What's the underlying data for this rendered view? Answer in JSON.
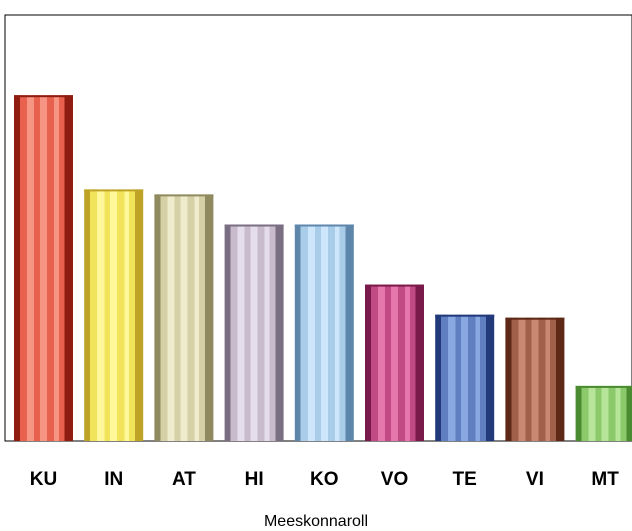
{
  "chart_data": {
    "type": "bar",
    "categories": [
      "KU",
      "IN",
      "AT",
      "HI",
      "KO",
      "VO",
      "TE",
      "VI",
      "MT"
    ],
    "values": [
      345,
      251,
      246,
      216,
      216,
      156,
      126,
      123,
      55
    ],
    "xlabel": "Meeskonnaroll",
    "ylabel": "",
    "ylim": [
      0,
      425
    ],
    "grid": false,
    "legend": "none",
    "colors": {
      "KU": {
        "base": "#e8604e",
        "light": "#f79585",
        "dark": "#8f1c10"
      },
      "IN": {
        "base": "#f2e45a",
        "light": "#fff89a",
        "dark": "#bfa326"
      },
      "AT": {
        "base": "#d6d0a6",
        "light": "#efeccd",
        "dark": "#8f8a60"
      },
      "HI": {
        "base": "#c8bccc",
        "light": "#e5dcec",
        "dark": "#7a6e82"
      },
      "KO": {
        "base": "#a9cce9",
        "light": "#cde6fb",
        "dark": "#5e86ab"
      },
      "VO": {
        "base": "#c24a84",
        "light": "#e577ad",
        "dark": "#7a1a4a"
      },
      "TE": {
        "base": "#5f7fc0",
        "light": "#89a7e0",
        "dark": "#22397a"
      },
      "VI": {
        "base": "#a0604a",
        "light": "#c98872",
        "dark": "#5e2816"
      },
      "MT": {
        "base": "#8bc96a",
        "light": "#b6e59a",
        "dark": "#4a8a30"
      }
    }
  }
}
